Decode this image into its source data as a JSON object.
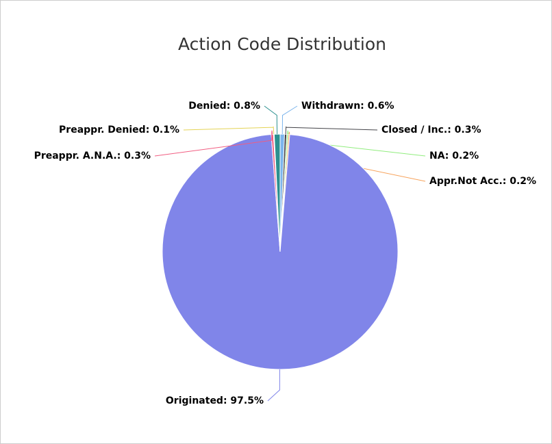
{
  "chart_data": {
    "type": "pie",
    "title": "Action Code Distribution",
    "values": [
      0.6,
      0.3,
      0.2,
      0.2,
      97.5,
      0.3,
      0.1,
      0.8
    ],
    "value_labels": [
      "Withdrawn: 0.6%",
      "Closed / Inc.: 0.3%",
      "NA: 0.2%",
      "Appr.Not Acc.: 0.2%",
      "Originated: 97.5%",
      "Preappr. A.N.A.: 0.3%",
      "Preappr. Denied: 0.1%",
      "Denied: 0.8%"
    ],
    "colors": [
      "#7cb5ec",
      "#434348",
      "#90ed7d",
      "#f7a35c",
      "#8085e9",
      "#f15c80",
      "#e4d354",
      "#2b908f"
    ]
  }
}
